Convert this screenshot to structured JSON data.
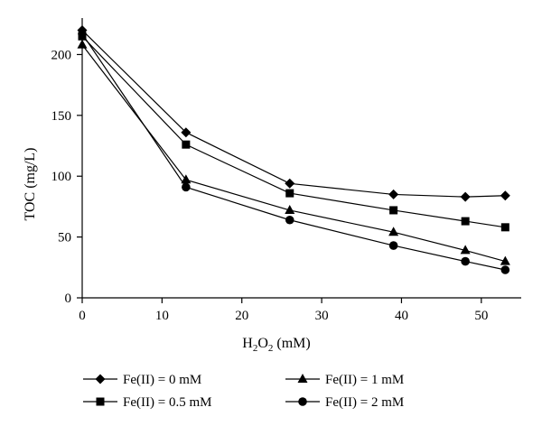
{
  "chart_data": {
    "type": "line",
    "xlabel": {
      "main": "H",
      "sub1": "2",
      "mid": "O",
      "sub2": "2",
      "tail": " (mM)"
    },
    "ylabel": "TOC (mg/L)",
    "xlim": [
      0,
      55
    ],
    "ylim": [
      0,
      230
    ],
    "xticks": [
      0,
      10,
      20,
      30,
      40,
      50
    ],
    "yticks": [
      0,
      50,
      100,
      150,
      200
    ],
    "grid": false,
    "legend_position": "bottom",
    "x": [
      0,
      13,
      26,
      39,
      48,
      53
    ],
    "series": [
      {
        "name": "Fe(II) = 0 mM",
        "marker": "diamond",
        "values": [
          220,
          136,
          94,
          85,
          83,
          84
        ]
      },
      {
        "name": "Fe(II) = 0.5 mM",
        "marker": "square",
        "values": [
          215,
          126,
          86,
          72,
          63,
          58
        ]
      },
      {
        "name": "Fe(II) = 1 mM",
        "marker": "triangle",
        "values": [
          208,
          97,
          72,
          54,
          39,
          30
        ]
      },
      {
        "name": "Fe(II) = 2 mM",
        "marker": "circle",
        "values": [
          217,
          91,
          64,
          43,
          30,
          23
        ]
      }
    ],
    "color": "#000000"
  }
}
